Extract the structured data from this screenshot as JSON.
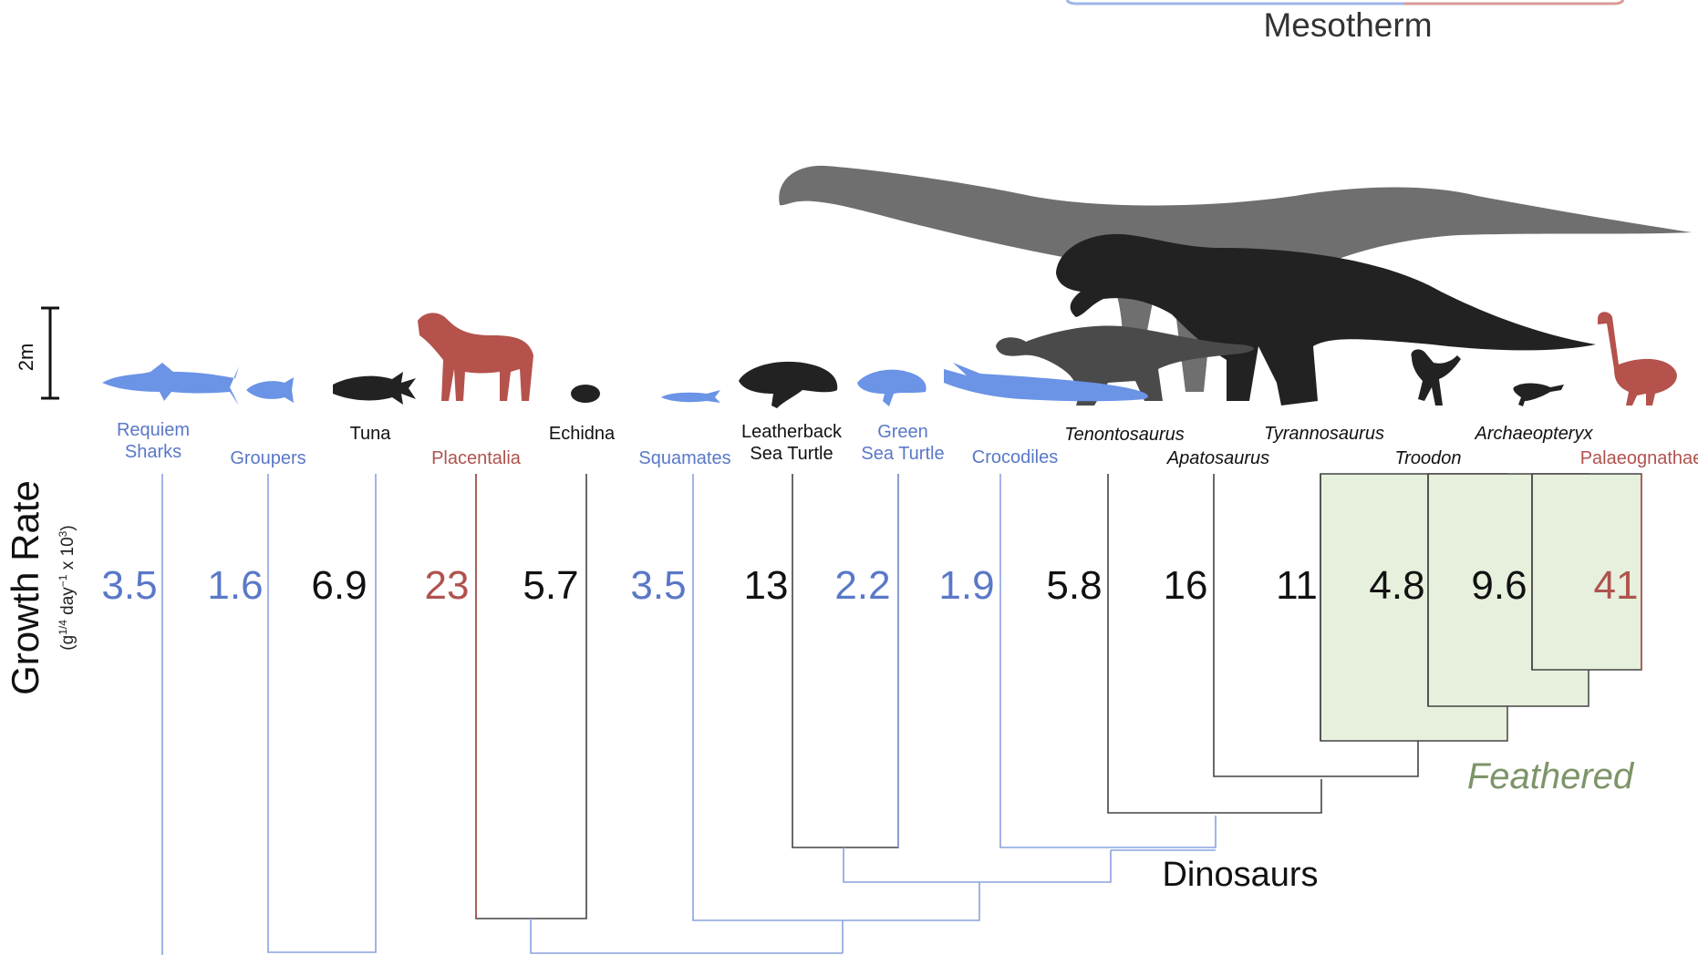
{
  "colors": {
    "ectotherm": "#5a78c8",
    "ectotherm_fill": "#6b93e6",
    "endotherm": "#b0524e",
    "endotherm_fill": "#b5524c",
    "mesotherm": "#111111",
    "feathered": "#7d9468",
    "feathered_fill": "#e6f0dc"
  },
  "header": {
    "mesotherm_label": "Mesotherm"
  },
  "scale_bar": {
    "label": "2m"
  },
  "axis": {
    "title": "Growth Rate",
    "units_pre": "(g",
    "units_exp1": "1/4",
    "units_mid": " day",
    "units_exp2": "−1",
    "units_post": " x 10",
    "units_exp3": "3",
    "units_close": ")"
  },
  "taxa": [
    {
      "lines": [
        "Requiem",
        "Sharks"
      ],
      "rate": "3.5",
      "group": "ectotherm",
      "italic": false,
      "icon": "shark-silhouette"
    },
    {
      "lines": [
        "Groupers"
      ],
      "rate": "1.6",
      "group": "ectotherm",
      "italic": false,
      "icon": "grouper-silhouette"
    },
    {
      "lines": [
        "Tuna"
      ],
      "rate": "6.9",
      "group": "mesotherm",
      "italic": false,
      "icon": "tuna-silhouette"
    },
    {
      "lines": [
        "Placentalia"
      ],
      "rate": "23",
      "group": "endotherm",
      "italic": false,
      "icon": "horse-silhouette"
    },
    {
      "lines": [
        "Echidna"
      ],
      "rate": "5.7",
      "group": "mesotherm",
      "italic": false,
      "icon": "echidna-silhouette"
    },
    {
      "lines": [
        "Squamates"
      ],
      "rate": "3.5",
      "group": "ectotherm",
      "italic": false,
      "icon": "lizard-silhouette"
    },
    {
      "lines": [
        "Leatherback",
        "Sea Turtle"
      ],
      "rate": "13",
      "group": "mesotherm",
      "italic": false,
      "icon": "leatherback-turtle-silhouette"
    },
    {
      "lines": [
        "Green",
        "Sea Turtle"
      ],
      "rate": "2.2",
      "group": "ectotherm",
      "italic": false,
      "icon": "green-turtle-silhouette"
    },
    {
      "lines": [
        "Crocodiles"
      ],
      "rate": "1.9",
      "group": "ectotherm",
      "italic": false,
      "icon": "crocodile-silhouette"
    },
    {
      "lines": [
        "Tenontosaurus"
      ],
      "rate": "5.8",
      "group": "mesotherm",
      "italic": true,
      "icon": "tenontosaurus-silhouette"
    },
    {
      "lines": [
        "Apatosaurus"
      ],
      "rate": "16",
      "group": "mesotherm",
      "italic": true,
      "icon": "apatosaurus-silhouette"
    },
    {
      "lines": [
        "Tyrannosaurus"
      ],
      "rate": "11",
      "group": "mesotherm",
      "italic": true,
      "icon": "tyrannosaurus-silhouette"
    },
    {
      "lines": [
        "Troodon"
      ],
      "rate": "4.8",
      "group": "mesotherm",
      "italic": true,
      "icon": "troodon-silhouette"
    },
    {
      "lines": [
        "Archaeopteryx"
      ],
      "rate": "9.6",
      "group": "mesotherm",
      "italic": true,
      "icon": "archaeopteryx-silhouette"
    },
    {
      "lines": [
        "Palaeognathae"
      ],
      "rate": "41",
      "group": "endotherm",
      "italic": false,
      "icon": "ratite-silhouette"
    }
  ],
  "clade_labels": {
    "feathered": "Feathered",
    "dinosaurs": "Dinosaurs"
  }
}
